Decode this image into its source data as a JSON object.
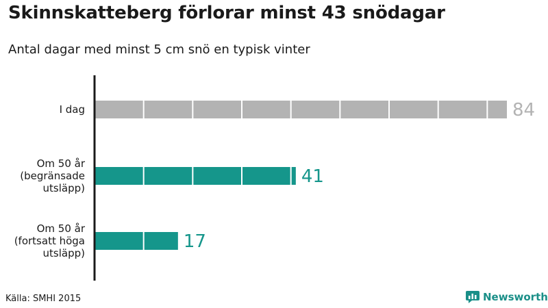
{
  "title": "Skinnskatteberg förlorar minst 43 snödagar",
  "subtitle": "Antal dagar med minst 5 cm snö en typisk vinter",
  "source": "Källa: SMHI 2015",
  "brand": {
    "name": "Newsworthy",
    "icon": "newsworthy-logo-icon",
    "color": "#1a8f88"
  },
  "colors": {
    "current": "#b3b3b3",
    "future": "#15968b",
    "axis": "#1a1a1a"
  },
  "chart_data": {
    "type": "bar",
    "orientation": "horizontal",
    "title": "Skinnskatteberg förlorar minst 43 snödagar",
    "subtitle": "Antal dagar med minst 5 cm snö en typisk vinter",
    "xlabel": "",
    "ylabel": "",
    "xlim": [
      0,
      84
    ],
    "segment_size": 10,
    "grid": false,
    "categories": [
      [
        "I dag"
      ],
      [
        "Om 50 år",
        "(begränsade",
        "utsläpp)"
      ],
      [
        "Om 50 år",
        "(fortsatt höga",
        "utsläpp)"
      ]
    ],
    "values": [
      84,
      41,
      17
    ],
    "value_labels": [
      "84",
      "41",
      "17"
    ],
    "bar_colors": [
      "#b3b3b3",
      "#15968b",
      "#15968b"
    ]
  }
}
